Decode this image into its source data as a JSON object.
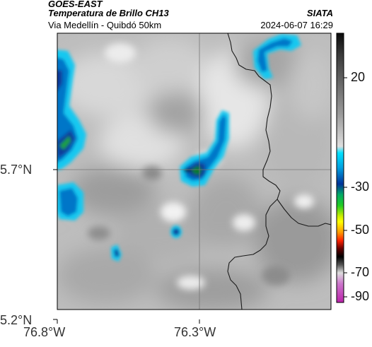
{
  "header": {
    "satellite": "GOES-EAST",
    "product": "Temperatura de Brillo CH13",
    "subtitle": "Via Medellín - Quibdó 50km",
    "organization": "SIATA",
    "timestamp": "2024-06-07 16:29"
  },
  "map": {
    "lat_ticks": [
      "5.7°N",
      "5.2°N"
    ],
    "lon_ticks": [
      "76.8°W",
      "76.3°W"
    ],
    "colors": {
      "frame": "#000000",
      "border_line": "#1a1a1a",
      "grid_line": "#777777"
    }
  },
  "colorbar": {
    "labels": [
      "20",
      "-30",
      "-50",
      "-70",
      "-90"
    ],
    "stops": [
      {
        "value": 40,
        "color": "#ffffff"
      },
      {
        "value": 20,
        "color": "#8c8c8c"
      },
      {
        "value": 0,
        "color": "#111111"
      },
      {
        "value": -20,
        "color": "#e6e6e6"
      },
      {
        "value": -20,
        "color": "#00d4ff"
      },
      {
        "value": -30,
        "color": "#0033aa"
      },
      {
        "value": -40,
        "color": "#00cc00"
      },
      {
        "value": -50,
        "color": "#ffff00"
      },
      {
        "value": -60,
        "color": "#ff2200"
      },
      {
        "value": -70,
        "color": "#000000"
      },
      {
        "value": -80,
        "color": "#e0e0e0"
      },
      {
        "value": -90,
        "color": "#cc00cc"
      }
    ]
  },
  "cold_clouds": [
    {
      "name": "west-edge-cloud",
      "core": "#0a3b9a",
      "peak": "#1aa040"
    },
    {
      "name": "central-band-cloud",
      "core": "#0a3b9a",
      "peak": "#0a7a2a"
    },
    {
      "name": "northeast-cloud",
      "core": "#0a3b9a",
      "peak": "#0a3b9a"
    },
    {
      "name": "small-cell-1",
      "core": "#0a3b9a",
      "peak": "#0a3b9a"
    },
    {
      "name": "small-cell-2",
      "core": "#0a3b9a",
      "peak": "#0a3b9a"
    },
    {
      "name": "southwest-cloud",
      "core": "#0a3b9a",
      "peak": "#0a3b9a"
    }
  ]
}
